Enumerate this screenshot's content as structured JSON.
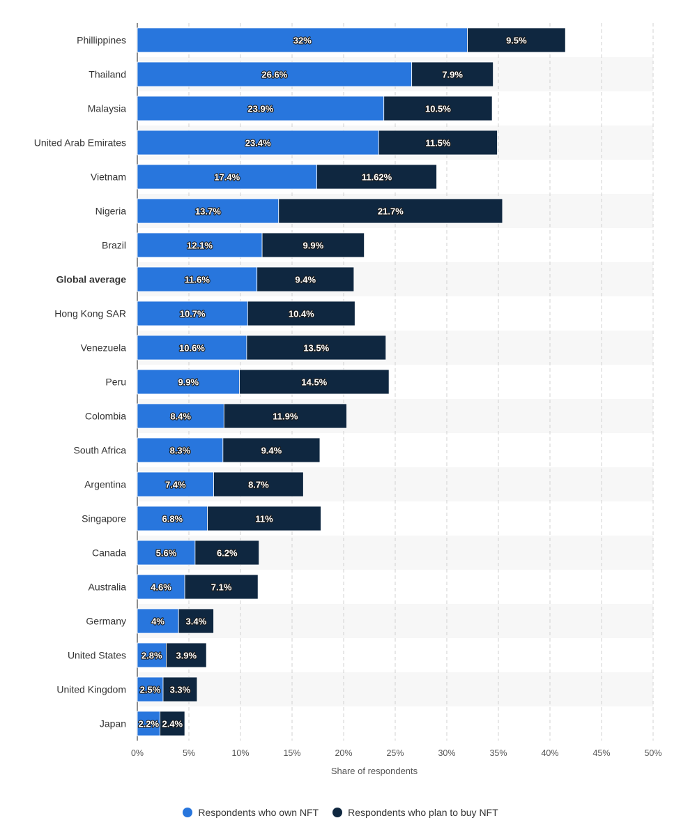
{
  "chart_data": {
    "type": "bar",
    "orientation": "horizontal",
    "stacked": true,
    "categories": [
      "Phillippines",
      "Thailand",
      "Malaysia",
      "United Arab Emirates",
      "Vietnam",
      "Nigeria",
      "Brazil",
      "Global average",
      "Hong Kong SAR",
      "Venezuela",
      "Peru",
      "Colombia",
      "South Africa",
      "Argentina",
      "Singapore",
      "Canada",
      "Australia",
      "Germany",
      "United States",
      "United Kingdom",
      "Japan"
    ],
    "highlight_category": "Global average",
    "series": [
      {
        "name": "Respondents who own NFT",
        "color": "#2876dd",
        "values": [
          32,
          26.6,
          23.9,
          23.4,
          17.4,
          13.7,
          12.1,
          11.6,
          10.7,
          10.6,
          9.9,
          8.4,
          8.3,
          7.4,
          6.8,
          5.6,
          4.6,
          4,
          2.8,
          2.5,
          2.2
        ],
        "labels": [
          "32%",
          "26.6%",
          "23.9%",
          "23.4%",
          "17.4%",
          "13.7%",
          "12.1%",
          "11.6%",
          "10.7%",
          "10.6%",
          "9.9%",
          "8.4%",
          "8.3%",
          "7.4%",
          "6.8%",
          "5.6%",
          "4.6%",
          "4%",
          "2.8%",
          "2.5%",
          "2.2%"
        ]
      },
      {
        "name": "Respondents who plan to buy NFT",
        "color": "#0f2740",
        "values": [
          9.5,
          7.9,
          10.5,
          11.5,
          11.62,
          21.7,
          9.9,
          9.4,
          10.4,
          13.5,
          14.5,
          11.9,
          9.4,
          8.7,
          11,
          6.2,
          7.1,
          3.4,
          3.9,
          3.3,
          2.4
        ],
        "labels": [
          "9.5%",
          "7.9%",
          "10.5%",
          "11.5%",
          "11.62%",
          "21.7%",
          "9.9%",
          "9.4%",
          "10.4%",
          "13.5%",
          "14.5%",
          "11.9%",
          "9.4%",
          "8.7%",
          "11%",
          "6.2%",
          "7.1%",
          "3.4%",
          "3.9%",
          "3.3%",
          "2.4%"
        ]
      }
    ],
    "xlim": [
      0,
      50
    ],
    "xticks": [
      0,
      5,
      10,
      15,
      20,
      25,
      30,
      35,
      40,
      45,
      50
    ],
    "xtick_labels": [
      "0%",
      "5%",
      "10%",
      "15%",
      "20%",
      "25%",
      "30%",
      "35%",
      "40%",
      "45%",
      "50%"
    ],
    "xlabel": "Share of respondents",
    "ylabel": "",
    "grid": "vertical dashed",
    "alternating_row_bands": true,
    "legend_position": "bottom-center"
  },
  "legend": {
    "own_label": "Respondents who own NFT",
    "plan_label": "Respondents who plan to buy NFT"
  }
}
